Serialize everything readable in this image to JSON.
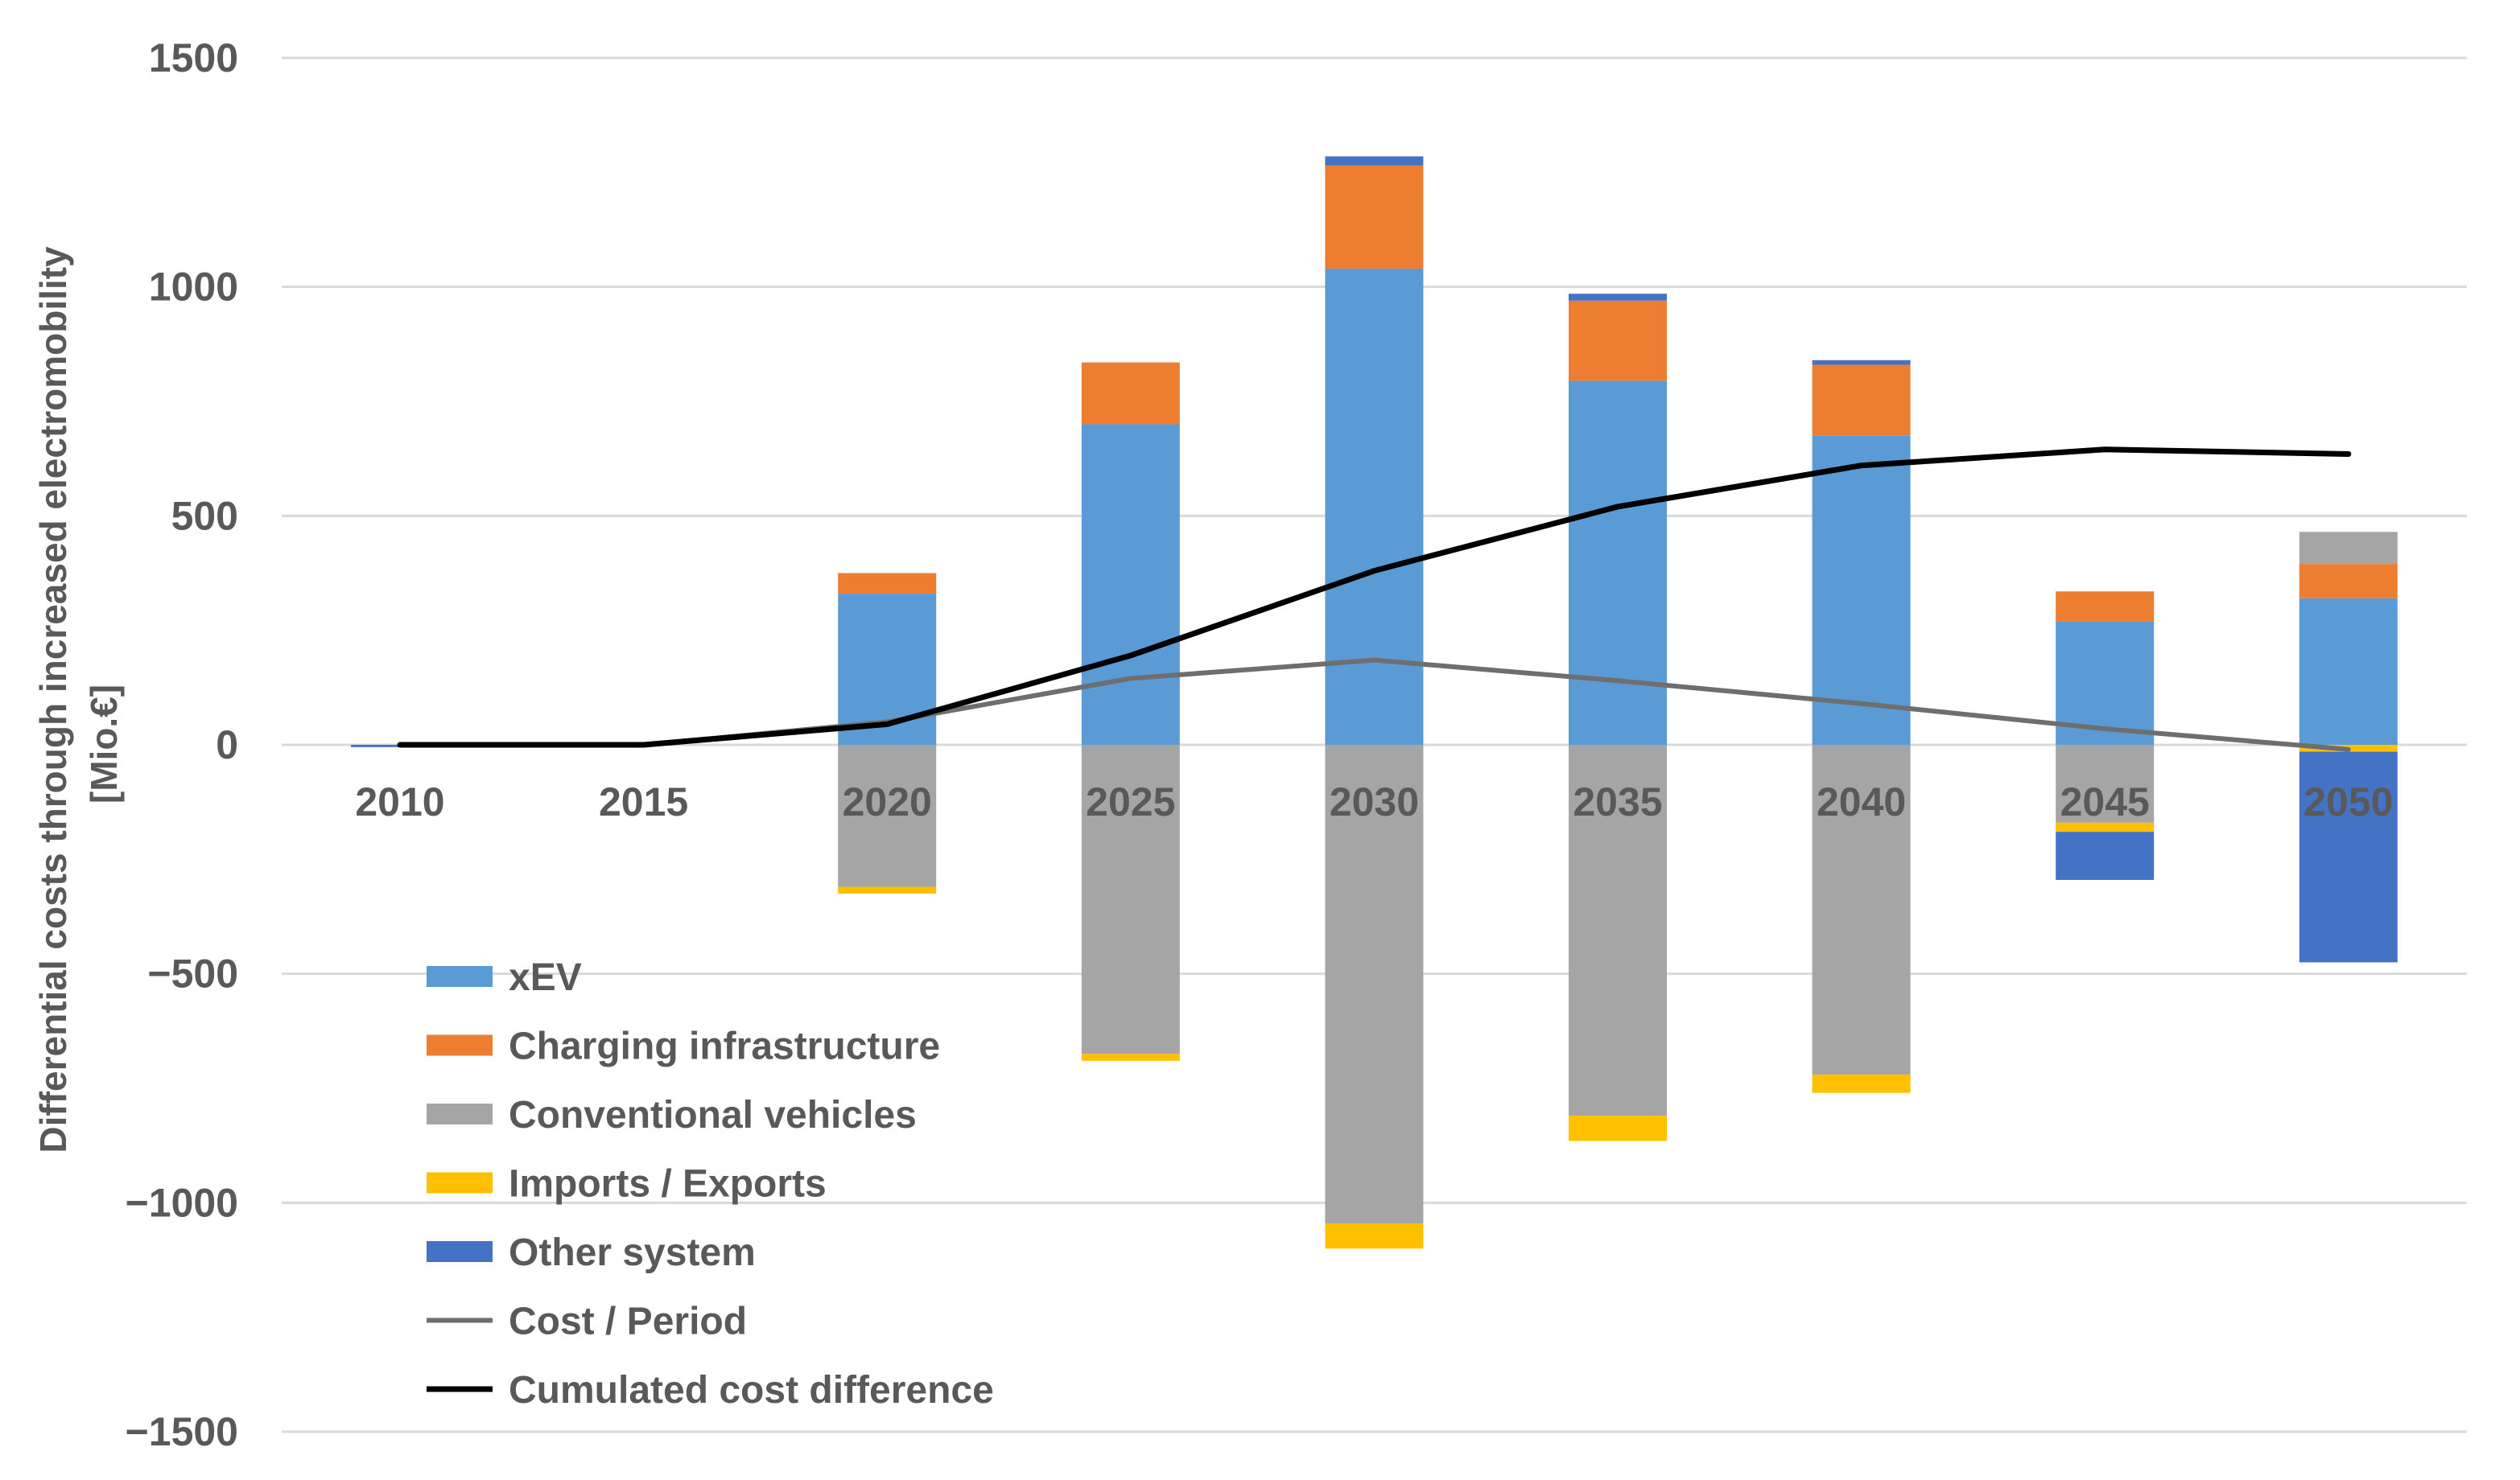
{
  "chart_data": {
    "type": "bar",
    "stacked": true,
    "title": "",
    "xlabel": "",
    "ylabel_line1": "Differential costs through increased electromobility",
    "ylabel_line2": "[Mio.€]",
    "ylim": [
      -1500,
      1500
    ],
    "yticks": [
      1500,
      1000,
      500,
      0,
      -500,
      -1000,
      -1500
    ],
    "categories": [
      "2010",
      "2015",
      "2020",
      "2025",
      "2030",
      "2035",
      "2040",
      "2045",
      "2050"
    ],
    "series": [
      {
        "name": "xEV",
        "color": "#5b9bd5",
        "kind": "bar",
        "values": [
          0,
          0,
          330,
          700,
          1040,
          795,
          675,
          270,
          320
        ]
      },
      {
        "name": "Charging infrastructure",
        "color": "#ed7d31",
        "kind": "bar",
        "values": [
          0,
          0,
          45,
          135,
          225,
          175,
          155,
          65,
          75
        ]
      },
      {
        "name": "Conventional vehicles",
        "color": "#a5a5a5",
        "kind": "bar",
        "values": [
          0,
          0,
          -310,
          -675,
          -1045,
          -810,
          -720,
          -170,
          70
        ]
      },
      {
        "name": "Imports / Exports",
        "color": "#ffc000",
        "kind": "bar",
        "values": [
          0,
          0,
          -15,
          -15,
          -55,
          -55,
          -40,
          -20,
          -15
        ]
      },
      {
        "name": "Other system",
        "color": "#4472c4",
        "kind": "bar",
        "values": [
          -5,
          0,
          0,
          0,
          20,
          15,
          10,
          -105,
          -460
        ]
      },
      {
        "name": "Cost / Period",
        "color": "#6e6e6e",
        "kind": "line",
        "values": [
          0,
          0,
          50,
          145,
          185,
          140,
          90,
          35,
          -10
        ]
      },
      {
        "name": "Cumulated cost difference",
        "color": "#000000",
        "kind": "line",
        "values": [
          0,
          0,
          45,
          195,
          380,
          520,
          610,
          645,
          635
        ]
      }
    ],
    "legend_position": "bottom-left",
    "grid": true
  }
}
